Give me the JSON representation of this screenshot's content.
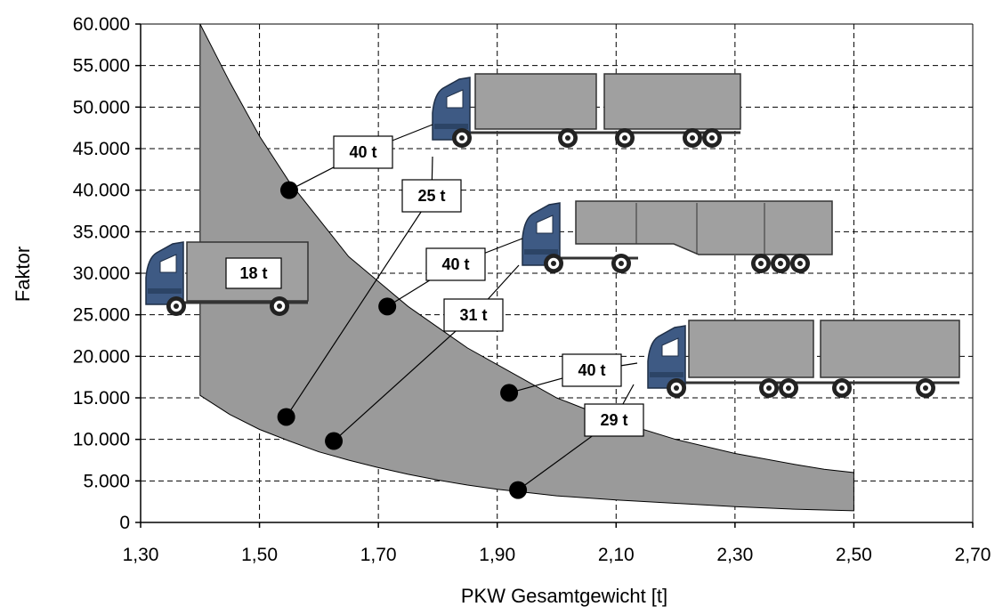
{
  "chart_data": {
    "type": "area",
    "title": "",
    "xlabel": "PKW Gesamtgewicht [t]",
    "ylabel": "Faktor",
    "xlim": [
      1.3,
      2.7
    ],
    "ylim": [
      0,
      60000
    ],
    "x_ticks": [
      "1,30",
      "1,50",
      "1,70",
      "1,90",
      "2,10",
      "2,30",
      "2,50",
      "2,70"
    ],
    "y_ticks": [
      "0",
      "5.000",
      "10.000",
      "15.000",
      "20.000",
      "25.000",
      "30.000",
      "35.000",
      "40.000",
      "45.000",
      "50.000",
      "55.000",
      "60.000"
    ],
    "grid": true,
    "band": {
      "x": [
        1.4,
        1.45,
        1.5,
        1.55,
        1.6,
        1.65,
        1.7,
        1.75,
        1.8,
        1.85,
        1.9,
        1.95,
        2.0,
        2.1,
        2.2,
        2.3,
        2.4,
        2.45,
        2.5
      ],
      "upper": [
        60000,
        53000,
        46500,
        41000,
        36500,
        32000,
        29000,
        26000,
        23500,
        21000,
        19000,
        17000,
        15000,
        12200,
        10000,
        8300,
        7000,
        6400,
        6000
      ],
      "lower": [
        15300,
        13000,
        11200,
        9800,
        8500,
        7500,
        6600,
        5800,
        5100,
        4500,
        4000,
        3600,
        3200,
        2700,
        2300,
        1900,
        1600,
        1500,
        1400
      ]
    },
    "points": [
      {
        "x": 1.55,
        "y": 40000,
        "label": "40 t"
      },
      {
        "x": 1.545,
        "y": 12700,
        "label": "25 t"
      },
      {
        "x": 1.715,
        "y": 26000,
        "label": "40 t"
      },
      {
        "x": 1.625,
        "y": 9800,
        "label": "31 t"
      },
      {
        "x": 1.92,
        "y": 15600,
        "label": "40 t"
      },
      {
        "x": 1.935,
        "y": 3900,
        "label": "29 t"
      }
    ],
    "annotations": [
      "18 t"
    ]
  }
}
